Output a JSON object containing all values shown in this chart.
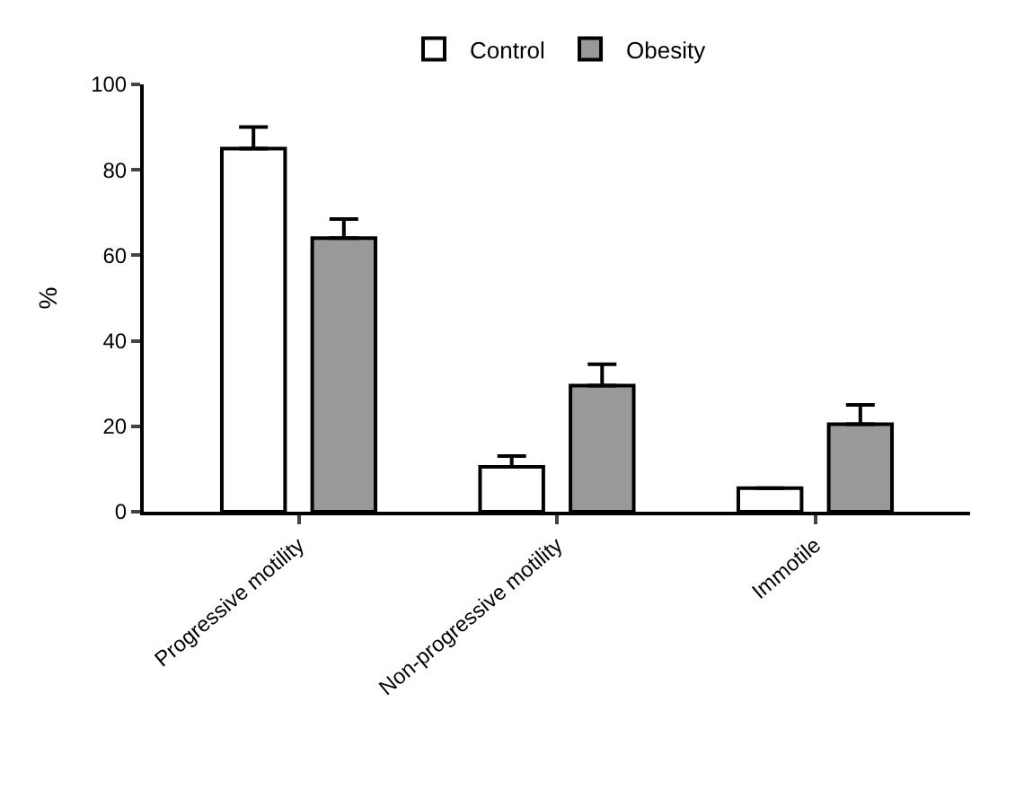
{
  "chart_data": {
    "type": "bar",
    "ylabel": "%",
    "categories": [
      "Progressive motility",
      "Non-progressive motility",
      "Immotile"
    ],
    "series": [
      {
        "name": "Control",
        "color": "#ffffff",
        "values": [
          85,
          10.5,
          5.5
        ],
        "errors": [
          [
            85,
            90
          ],
          [
            10.5,
            13
          ],
          null
        ]
      },
      {
        "name": "Obesity",
        "color": "#999999",
        "values": [
          64,
          29.5,
          20.5
        ],
        "errors": [
          [
            64,
            68.5
          ],
          [
            29.5,
            34.5
          ],
          [
            20.5,
            25
          ]
        ]
      }
    ],
    "ylim": [
      0,
      100
    ],
    "yticks": [
      0,
      20,
      40,
      60,
      80,
      100
    ],
    "legend": "top"
  }
}
